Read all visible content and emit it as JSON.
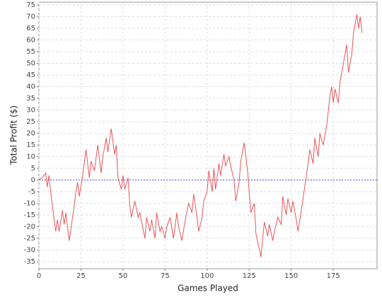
{
  "chart_data": {
    "type": "line",
    "xlabel": "Games Played",
    "ylabel": "Total Profit ($)",
    "xlim": [
      0,
      201
    ],
    "ylim": [
      -38,
      76.2
    ],
    "xticks": [
      0,
      25,
      50,
      75,
      100,
      125,
      150,
      175
    ],
    "yticks": [
      -35,
      -30,
      -25,
      -20,
      -15,
      -10,
      -5,
      0,
      5,
      10,
      15,
      20,
      25,
      30,
      35,
      40,
      45,
      50,
      55,
      60,
      65,
      70,
      75
    ],
    "grid": true,
    "zero_marker": {
      "value": 0,
      "color": "#5555cc"
    },
    "series": [
      {
        "name": "Total Profit",
        "color": "#e8555a",
        "x": [
          0,
          1,
          2,
          4,
          5,
          6,
          7,
          8,
          10,
          11,
          12,
          14,
          15,
          16,
          18,
          20,
          21,
          22,
          23,
          24,
          26,
          28,
          30,
          31,
          33,
          35,
          37,
          38,
          40,
          41,
          43,
          45,
          46,
          47,
          49,
          50,
          51,
          53,
          54,
          55,
          57,
          59,
          60,
          63,
          64,
          66,
          67,
          69,
          70,
          72,
          73,
          75,
          76,
          78,
          80,
          82,
          83,
          85,
          87,
          89,
          91,
          92,
          94,
          95,
          97,
          98,
          100,
          101,
          103,
          104,
          105,
          107,
          108,
          110,
          111,
          113,
          114,
          116,
          117,
          119,
          120,
          122,
          124,
          125,
          126,
          128,
          129,
          132,
          133,
          134,
          136,
          137,
          139,
          140,
          142,
          144,
          145,
          147,
          148,
          150,
          151,
          153,
          154,
          156,
          158,
          160,
          161,
          163,
          164,
          166,
          167,
          169,
          171,
          173,
          174,
          175,
          176,
          178,
          179,
          181,
          183,
          184,
          186,
          187,
          189,
          190,
          191,
          192
        ],
        "values": [
          0,
          0.5,
          1,
          3,
          -3,
          2,
          -5,
          -11,
          -22,
          -17,
          -22,
          -13,
          -19,
          -14,
          -26,
          -16,
          -11,
          -5,
          -1,
          -7,
          2,
          13,
          1,
          8,
          4,
          15,
          3,
          10,
          18,
          12,
          22,
          11,
          15,
          1,
          -4,
          2,
          -4,
          1,
          -11,
          -16,
          -9,
          -16,
          -14,
          -25,
          -16,
          -22,
          -17,
          -25,
          -14,
          -22,
          -20,
          -25,
          -20,
          -16,
          -25,
          -14,
          -20,
          -26,
          -17,
          -10,
          -14,
          -6,
          -16,
          -22,
          -16,
          -9,
          -5,
          4,
          -5,
          5,
          -4,
          7,
          2,
          11,
          6,
          10,
          6,
          0,
          -9,
          -1,
          8,
          16,
          4,
          -5,
          -14,
          -10,
          -23,
          -33,
          -25,
          -18,
          -24,
          -19,
          -26,
          -22,
          -16,
          -19,
          -7,
          -15,
          -8,
          -14,
          -9,
          -17,
          -22,
          -13,
          -3,
          7,
          13,
          7,
          18,
          10,
          20,
          15,
          23,
          36,
          40,
          33,
          39,
          33,
          42,
          50,
          58,
          46,
          54,
          63,
          71,
          65,
          70,
          63
        ]
      }
    ]
  }
}
